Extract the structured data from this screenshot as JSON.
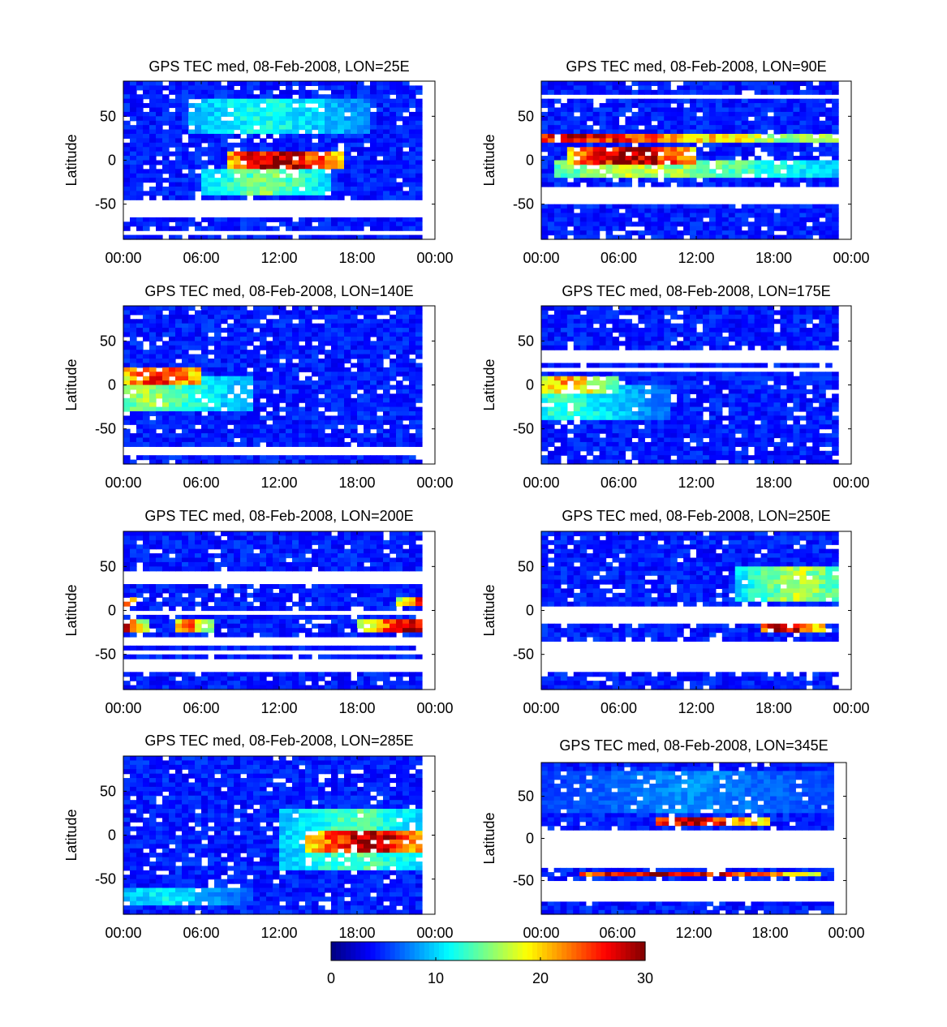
{
  "chart_data": {
    "type": "heatmap",
    "shared": {
      "ylabel": "Latitude",
      "x_ticks": [
        "00:00",
        "06:00",
        "12:00",
        "18:00",
        "00:00"
      ],
      "y_ticks": [
        "50",
        "0",
        "-50"
      ],
      "xlim_hours": [
        0,
        24
      ],
      "ylim": [
        -90,
        90
      ],
      "colorbar": {
        "range": [
          0,
          30
        ],
        "ticks": [
          "0",
          "10",
          "20",
          "30"
        ],
        "colormap": "jet"
      }
    },
    "panels": [
      {
        "title": "GPS TEC med, 08-Feb-2008, LON=25E",
        "data_end_hour": 23,
        "gap_bands": [
          [
            -65,
            -45
          ],
          [
            -85,
            -80
          ]
        ],
        "features": [
          {
            "lat": [
              -10,
              10
            ],
            "hours": [
              8,
              17
            ],
            "peak_value": 30,
            "peak_hour": 12
          },
          {
            "lat": [
              30,
              70
            ],
            "hours": [
              5,
              19
            ],
            "peak_value": 12,
            "peak_hour": 11
          },
          {
            "lat": [
              -40,
              -10
            ],
            "hours": [
              6,
              16
            ],
            "peak_value": 15,
            "peak_hour": 11
          }
        ]
      },
      {
        "title": "GPS TEC med, 08-Feb-2008, LON=90E",
        "data_end_hour": 23,
        "gap_bands": [
          [
            -50,
            -30
          ],
          [
            70,
            75
          ]
        ],
        "features": [
          {
            "lat": [
              -5,
              15
            ],
            "hours": [
              2,
              12
            ],
            "peak_value": 30,
            "peak_hour": 7
          },
          {
            "lat": [
              20,
              30
            ],
            "hours": [
              0,
              24
            ],
            "peak_value": 28,
            "peak_hour": 2
          },
          {
            "lat": [
              -20,
              0
            ],
            "hours": [
              1,
              23
            ],
            "peak_value": 17,
            "peak_hour": 8
          }
        ]
      },
      {
        "title": "GPS TEC med, 08-Feb-2008, LON=140E",
        "data_end_hour": 23,
        "gap_bands": [
          [
            -80,
            -70
          ]
        ],
        "features": [
          {
            "lat": [
              0,
              20
            ],
            "hours": [
              0,
              6
            ],
            "peak_value": 28,
            "peak_hour": 3
          },
          {
            "lat": [
              -30,
              10
            ],
            "hours": [
              0,
              10
            ],
            "peak_value": 16,
            "peak_hour": 2
          }
        ]
      },
      {
        "title": "GPS TEC med, 08-Feb-2008, LON=175E",
        "data_end_hour": 23,
        "gap_bands": [
          [
            25,
            40
          ],
          [
            15,
            20
          ]
        ],
        "features": [
          {
            "lat": [
              -10,
              10
            ],
            "hours": [
              0,
              6
            ],
            "peak_value": 22,
            "peak_hour": 2
          },
          {
            "lat": [
              -40,
              0
            ],
            "hours": [
              0,
              10
            ],
            "peak_value": 13,
            "peak_hour": 2
          }
        ]
      },
      {
        "title": "GPS TEC med, 08-Feb-2008, LON=200E",
        "data_end_hour": 23,
        "gap_bands": [
          [
            30,
            45
          ],
          [
            -5,
            0
          ],
          [
            -40,
            -30
          ],
          [
            -50,
            -45
          ],
          [
            -70,
            -55
          ]
        ],
        "features": [
          {
            "lat": [
              5,
              15
            ],
            "hours": [
              0,
              1
            ],
            "peak_value": 30,
            "peak_hour": 0
          },
          {
            "lat": [
              5,
              15
            ],
            "hours": [
              21,
              23
            ],
            "peak_value": 30,
            "peak_hour": 23
          },
          {
            "lat": [
              -25,
              -10
            ],
            "hours": [
              0,
              2
            ],
            "peak_value": 30,
            "peak_hour": 0
          },
          {
            "lat": [
              -25,
              -10
            ],
            "hours": [
              4,
              7
            ],
            "peak_value": 24,
            "peak_hour": 5
          },
          {
            "lat": [
              -25,
              -10
            ],
            "hours": [
              18,
              23
            ],
            "peak_value": 30,
            "peak_hour": 22
          }
        ]
      },
      {
        "title": "GPS TEC med, 08-Feb-2008, LON=250E",
        "data_end_hour": 23,
        "gap_bands": [
          [
            -15,
            5
          ],
          [
            -70,
            -35
          ]
        ],
        "features": [
          {
            "lat": [
              10,
              50
            ],
            "hours": [
              15,
              23
            ],
            "peak_value": 17,
            "peak_hour": 20
          },
          {
            "lat": [
              -25,
              -15
            ],
            "hours": [
              17,
              22
            ],
            "peak_value": 30,
            "peak_hour": 19
          }
        ]
      },
      {
        "title": "GPS TEC med, 08-Feb-2008, LON=285E",
        "data_end_hour": 23,
        "gap_bands": [],
        "features": [
          {
            "lat": [
              -20,
              5
            ],
            "hours": [
              14,
              23
            ],
            "peak_value": 30,
            "peak_hour": 19
          },
          {
            "lat": [
              -40,
              30
            ],
            "hours": [
              12,
              23
            ],
            "peak_value": 14,
            "peak_hour": 18
          },
          {
            "lat": [
              -80,
              -60
            ],
            "hours": [
              0,
              10
            ],
            "peak_value": 11,
            "peak_hour": 3
          }
        ]
      },
      {
        "title": "GPS TEC med, 08-Feb-2008, LON=345E",
        "data_end_hour": 23,
        "gap_bands": [
          [
            -35,
            10
          ],
          [
            -75,
            -50
          ]
        ],
        "features": [
          {
            "lat": [
              15,
              25
            ],
            "hours": [
              9,
              18
            ],
            "peak_value": 30,
            "peak_hour": 12
          },
          {
            "lat": [
              -45,
              -38
            ],
            "hours": [
              3,
              22
            ],
            "peak_value": 30,
            "peak_hour": 10
          },
          {
            "lat": [
              30,
              80
            ],
            "hours": [
              0,
              23
            ],
            "peak_value": 8,
            "peak_hour": 12
          }
        ]
      }
    ]
  }
}
